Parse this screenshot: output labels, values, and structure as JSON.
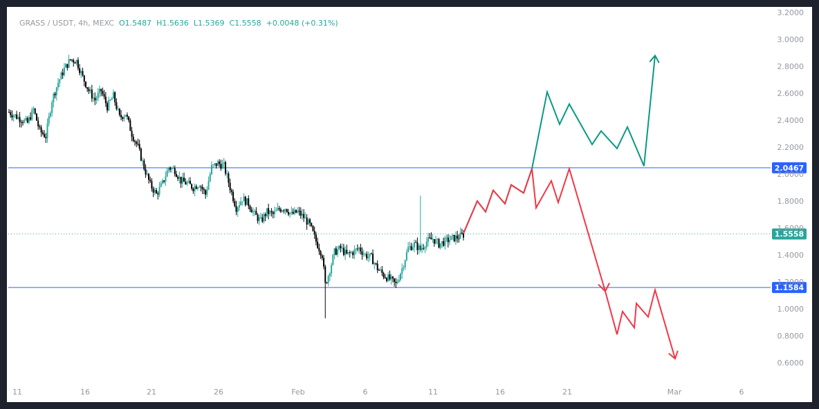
{
  "header": {
    "symbol": "GRASS / USDT, 4h, MEXC",
    "open": "O1.5487",
    "high": "H1.5636",
    "low": "L1.5369",
    "close": "C1.5558",
    "change": "+0.0048 (+0.31%)"
  },
  "colors": {
    "up": "#26a69a",
    "down": "#000000",
    "hline": "#2962ff",
    "projection_up": "#089981",
    "projection_down": "#f23645",
    "axis_text": "#9598a1",
    "last_price": "#26a69a"
  },
  "chart_data": {
    "type": "candlestick",
    "y_ticks": [
      "0.6000",
      "0.8000",
      "1.0000",
      "1.2000",
      "1.4000",
      "1.6000",
      "1.8000",
      "2.0000",
      "2.2000",
      "2.4000",
      "2.6000",
      "2.8000",
      "3.0000",
      "3.2000"
    ],
    "x_ticks": [
      "11",
      "16",
      "21",
      "26",
      "Feb",
      "6",
      "11",
      "16",
      "21",
      "Mar",
      "6"
    ],
    "ylim": [
      0.55,
      3.25
    ],
    "horizontal_levels": [
      {
        "label": "2.0467",
        "value": 2.0467,
        "style": "solid"
      },
      {
        "label": "1.1584",
        "value": 1.1584,
        "style": "solid"
      },
      {
        "label": "1.5558",
        "value": 1.5558,
        "style": "dotted"
      }
    ],
    "price_path": [
      [
        0,
        2.46
      ],
      [
        6,
        2.42
      ],
      [
        12,
        2.38
      ],
      [
        16,
        2.48
      ],
      [
        20,
        2.32
      ],
      [
        24,
        2.28
      ],
      [
        28,
        2.55
      ],
      [
        32,
        2.68
      ],
      [
        36,
        2.78
      ],
      [
        40,
        2.85
      ],
      [
        44,
        2.84
      ],
      [
        48,
        2.72
      ],
      [
        52,
        2.62
      ],
      [
        56,
        2.55
      ],
      [
        60,
        2.62
      ],
      [
        64,
        2.5
      ],
      [
        68,
        2.58
      ],
      [
        72,
        2.42
      ],
      [
        76,
        2.45
      ],
      [
        80,
        2.3
      ],
      [
        84,
        2.2
      ],
      [
        88,
        2.05
      ],
      [
        92,
        1.92
      ],
      [
        96,
        1.85
      ],
      [
        100,
        1.93
      ],
      [
        104,
        2.05
      ],
      [
        108,
        2.03
      ],
      [
        112,
        1.95
      ],
      [
        116,
        1.93
      ],
      [
        120,
        1.9
      ],
      [
        124,
        1.93
      ],
      [
        128,
        1.85
      ],
      [
        132,
        2.05
      ],
      [
        136,
        2.08
      ],
      [
        140,
        2.06
      ],
      [
        144,
        1.9
      ],
      [
        148,
        1.75
      ],
      [
        152,
        1.82
      ],
      [
        156,
        1.78
      ],
      [
        160,
        1.7
      ],
      [
        164,
        1.65
      ],
      [
        168,
        1.72
      ],
      [
        172,
        1.7
      ],
      [
        176,
        1.74
      ],
      [
        180,
        1.75
      ],
      [
        184,
        1.7
      ],
      [
        188,
        1.72
      ],
      [
        192,
        1.68
      ],
      [
        196,
        1.62
      ],
      [
        200,
        1.5
      ],
      [
        204,
        1.4
      ],
      [
        206,
        1.18
      ],
      [
        208,
        1.25
      ],
      [
        212,
        1.42
      ],
      [
        216,
        1.45
      ],
      [
        220,
        1.4
      ],
      [
        224,
        1.42
      ],
      [
        228,
        1.45
      ],
      [
        232,
        1.4
      ],
      [
        236,
        1.38
      ],
      [
        240,
        1.3
      ],
      [
        244,
        1.25
      ],
      [
        248,
        1.22
      ],
      [
        252,
        1.18
      ],
      [
        256,
        1.3
      ],
      [
        260,
        1.45
      ],
      [
        264,
        1.48
      ],
      [
        268,
        1.44
      ],
      [
        272,
        1.5
      ],
      [
        276,
        1.52
      ],
      [
        280,
        1.48
      ],
      [
        284,
        1.5
      ],
      [
        288,
        1.52
      ],
      [
        292,
        1.53
      ],
      [
        296,
        1.55
      ]
    ],
    "spikes": [
      {
        "t": 206,
        "high": 1.3,
        "low": 0.93,
        "color": "down"
      },
      {
        "t": 268,
        "high": 1.84,
        "low": 1.42,
        "color": "up"
      }
    ],
    "projection_up": [
      [
        1.56,
        0
      ],
      [
        1.8,
        1
      ],
      [
        1.72,
        2
      ],
      [
        1.88,
        3
      ],
      [
        1.78,
        4
      ],
      [
        1.92,
        5
      ],
      [
        1.86,
        6
      ],
      [
        2.04,
        7
      ],
      [
        2.61,
        8
      ],
      [
        2.37,
        9
      ],
      [
        2.52,
        10
      ],
      [
        2.22,
        11
      ],
      [
        2.32,
        12
      ],
      [
        2.19,
        13
      ],
      [
        2.35,
        14
      ],
      [
        2.06,
        15
      ],
      [
        2.88,
        16
      ]
    ],
    "projection_down": [
      [
        1.56,
        0
      ],
      [
        1.8,
        1
      ],
      [
        1.72,
        2
      ],
      [
        1.88,
        3
      ],
      [
        1.78,
        4
      ],
      [
        1.92,
        5
      ],
      [
        1.86,
        6
      ],
      [
        2.04,
        7
      ],
      [
        1.75,
        8
      ],
      [
        1.95,
        9
      ],
      [
        1.79,
        10
      ],
      [
        2.04,
        11
      ],
      [
        1.13,
        12
      ],
      [
        0.81,
        13
      ],
      [
        0.98,
        14
      ],
      [
        0.86,
        15
      ],
      [
        1.04,
        16
      ],
      [
        0.94,
        17
      ],
      [
        1.14,
        18
      ],
      [
        0.63,
        19
      ]
    ]
  }
}
